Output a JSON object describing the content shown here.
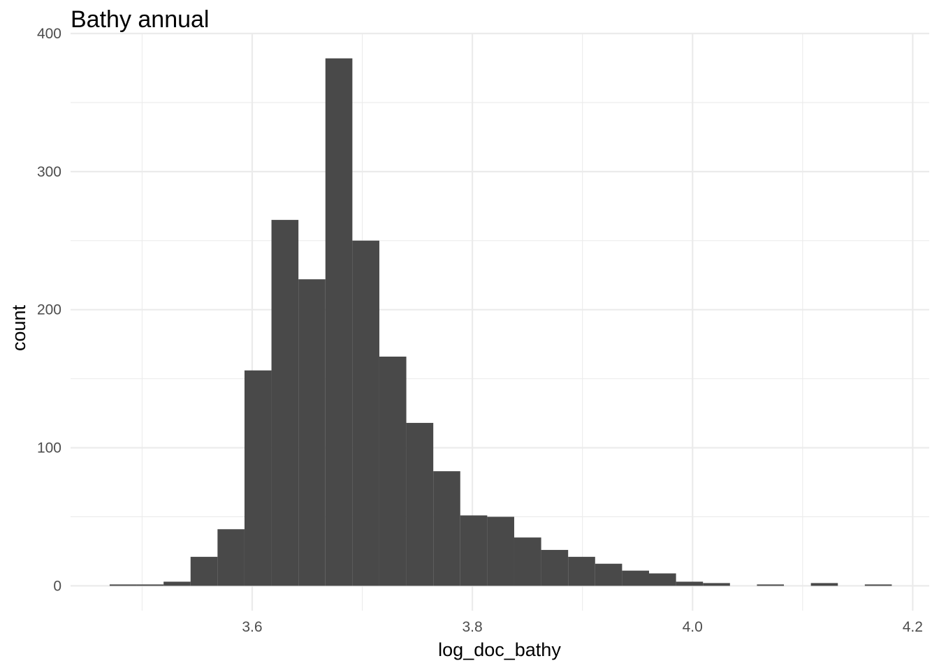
{
  "chart_data": {
    "type": "bar",
    "title": "Bathy annual",
    "xlabel": "log_doc_bathy",
    "ylabel": "count",
    "xlim": [
      3.435,
      4.215
    ],
    "ylim": [
      -18,
      400
    ],
    "x_ticks": [
      3.6,
      3.8,
      4.0,
      4.2
    ],
    "x_tick_labels": [
      "3.6",
      "3.8",
      "4.0",
      "4.2"
    ],
    "x_minor_ticks": [
      3.5,
      3.7,
      3.9,
      4.1
    ],
    "y_ticks": [
      0,
      100,
      200,
      300,
      400
    ],
    "y_tick_labels": [
      "0",
      "100",
      "200",
      "300",
      "400"
    ],
    "y_minor_ticks": [
      50,
      150,
      250,
      350
    ],
    "grid": true,
    "bar_color": "#494949",
    "bin_width": 0.02448,
    "bins": [
      {
        "x0": 3.4705,
        "x1": 3.495,
        "count": 1
      },
      {
        "x0": 3.495,
        "x1": 3.5195,
        "count": 1
      },
      {
        "x0": 3.5195,
        "x1": 3.544,
        "count": 3
      },
      {
        "x0": 3.544,
        "x1": 3.5685,
        "count": 21
      },
      {
        "x0": 3.5685,
        "x1": 3.593,
        "count": 41
      },
      {
        "x0": 3.593,
        "x1": 3.6175,
        "count": 156
      },
      {
        "x0": 3.6175,
        "x1": 3.642,
        "count": 265
      },
      {
        "x0": 3.642,
        "x1": 3.6665,
        "count": 222
      },
      {
        "x0": 3.6665,
        "x1": 3.691,
        "count": 382
      },
      {
        "x0": 3.691,
        "x1": 3.7155,
        "count": 250
      },
      {
        "x0": 3.7155,
        "x1": 3.74,
        "count": 166
      },
      {
        "x0": 3.74,
        "x1": 3.7645,
        "count": 118
      },
      {
        "x0": 3.7645,
        "x1": 3.789,
        "count": 83
      },
      {
        "x0": 3.789,
        "x1": 3.8135,
        "count": 51
      },
      {
        "x0": 3.8135,
        "x1": 3.838,
        "count": 50
      },
      {
        "x0": 3.838,
        "x1": 3.8625,
        "count": 35
      },
      {
        "x0": 3.8625,
        "x1": 3.887,
        "count": 26
      },
      {
        "x0": 3.887,
        "x1": 3.9115,
        "count": 21
      },
      {
        "x0": 3.9115,
        "x1": 3.936,
        "count": 16
      },
      {
        "x0": 3.936,
        "x1": 3.9605,
        "count": 11
      },
      {
        "x0": 3.9605,
        "x1": 3.985,
        "count": 9
      },
      {
        "x0": 3.985,
        "x1": 4.0095,
        "count": 3
      },
      {
        "x0": 4.0095,
        "x1": 4.034,
        "count": 2
      },
      {
        "x0": 4.0585,
        "x1": 4.083,
        "count": 1
      },
      {
        "x0": 4.1075,
        "x1": 4.132,
        "count": 2
      },
      {
        "x0": 4.1565,
        "x1": 4.181,
        "count": 1
      }
    ]
  }
}
